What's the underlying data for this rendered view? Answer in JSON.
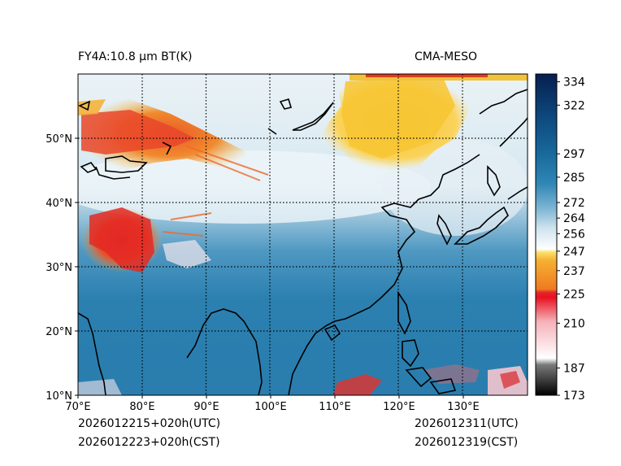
{
  "title_left": "FY4A:10.8 µm BT(K)",
  "title_right": "CMA-MESO",
  "init_utc": "2026012215+020h(UTC)",
  "init_cst": "2026012223+020h(CST)",
  "valid_utc": "2026012311(UTC)",
  "valid_cst": "2026012319(CST)",
  "map": {
    "lon_range": [
      70,
      140
    ],
    "lat_range": [
      10,
      60
    ],
    "lon_ticks": [
      "70°E",
      "80°E",
      "90°E",
      "100°E",
      "110°E",
      "120°E",
      "130°E"
    ],
    "lat_ticks": [
      "10°N",
      "20°N",
      "30°N",
      "40°N",
      "50°N"
    ],
    "lon_tick_values": [
      70,
      80,
      90,
      100,
      110,
      120,
      130
    ],
    "lat_tick_values": [
      10,
      20,
      30,
      40,
      50
    ]
  },
  "colorbar": {
    "range": [
      173,
      338
    ],
    "tick_labels": [
      "334",
      "322",
      "297",
      "285",
      "272",
      "264",
      "256",
      "247",
      "237",
      "225",
      "210",
      "187",
      "173"
    ],
    "tick_values": [
      334,
      322,
      297,
      285,
      272,
      264,
      256,
      247,
      237,
      225,
      210,
      187,
      173
    ]
  },
  "colors": {
    "ocean_blue": "#2a7fb0",
    "land_lightblue": "#c6deeb",
    "cold_yellow": "#f7c533",
    "cold_orange": "#ee8a2b",
    "cold_red": "#e4262a",
    "coast": "#000000",
    "grid": "#000000"
  }
}
